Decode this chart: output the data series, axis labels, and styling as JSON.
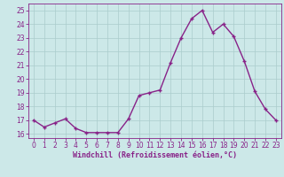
{
  "x": [
    0,
    1,
    2,
    3,
    4,
    5,
    6,
    7,
    8,
    9,
    10,
    11,
    12,
    13,
    14,
    15,
    16,
    17,
    18,
    19,
    20,
    21,
    22,
    23
  ],
  "y": [
    17.0,
    16.5,
    16.8,
    17.1,
    16.4,
    16.1,
    16.1,
    16.1,
    16.1,
    17.1,
    18.8,
    19.0,
    19.2,
    21.2,
    23.0,
    24.4,
    25.0,
    23.4,
    24.0,
    23.1,
    21.3,
    19.1,
    17.8,
    17.0
  ],
  "line_color": "#882288",
  "marker": "+",
  "marker_size": 3,
  "bg_color": "#cce8e8",
  "grid_color": "#aacccc",
  "xlabel": "Windchill (Refroidissement éolien,°C)",
  "xlabel_fontsize": 6.0,
  "ylim": [
    15.7,
    25.5
  ],
  "xlim": [
    -0.5,
    23.5
  ],
  "yticks": [
    16,
    17,
    18,
    19,
    20,
    21,
    22,
    23,
    24,
    25
  ],
  "xticks": [
    0,
    1,
    2,
    3,
    4,
    5,
    6,
    7,
    8,
    9,
    10,
    11,
    12,
    13,
    14,
    15,
    16,
    17,
    18,
    19,
    20,
    21,
    22,
    23
  ],
  "tick_fontsize": 5.5,
  "line_width": 1.0,
  "marker_edge_width": 1.0
}
